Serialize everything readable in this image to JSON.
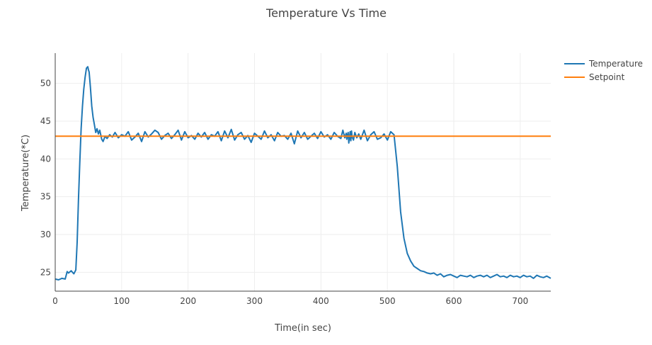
{
  "chart_data": {
    "type": "line",
    "title": "Temperature Vs Time",
    "xlabel": "Time(in sec)",
    "ylabel": "Temperature(*C)",
    "xlim": [
      0,
      746
    ],
    "ylim": [
      22.5,
      54
    ],
    "xticks": [
      0,
      100,
      200,
      300,
      400,
      500,
      600,
      700
    ],
    "yticks": [
      25,
      30,
      35,
      40,
      45,
      50
    ],
    "grid": true,
    "legend_position": "top-right",
    "series": [
      {
        "name": "Temperature",
        "color": "#1f77b4",
        "x": [
          0,
          5,
          10,
          15,
          18,
          20,
          24,
          28,
          31,
          33,
          35,
          37,
          39,
          41,
          43,
          45,
          47,
          49,
          50,
          51,
          52,
          53,
          55,
          57,
          59,
          61,
          63,
          65,
          67,
          70,
          72,
          75,
          78,
          82,
          86,
          90,
          95,
          100,
          105,
          110,
          115,
          120,
          125,
          130,
          135,
          140,
          145,
          150,
          155,
          160,
          165,
          170,
          175,
          180,
          185,
          190,
          195,
          200,
          205,
          210,
          215,
          220,
          225,
          230,
          235,
          240,
          245,
          250,
          255,
          260,
          265,
          270,
          275,
          280,
          285,
          290,
          295,
          300,
          305,
          310,
          315,
          320,
          325,
          330,
          335,
          340,
          345,
          350,
          355,
          360,
          365,
          370,
          375,
          380,
          385,
          390,
          395,
          400,
          405,
          410,
          415,
          420,
          425,
          430,
          433,
          436,
          438,
          439,
          440,
          441,
          442,
          443,
          444,
          445,
          446,
          447,
          449,
          451,
          454,
          457,
          460,
          465,
          470,
          475,
          480,
          485,
          490,
          495,
          500,
          505,
          510,
          515,
          520,
          525,
          530,
          535,
          540,
          545,
          550,
          555,
          560,
          565,
          570,
          575,
          580,
          585,
          590,
          595,
          600,
          605,
          610,
          615,
          620,
          625,
          630,
          635,
          640,
          645,
          650,
          655,
          660,
          665,
          670,
          675,
          680,
          685,
          690,
          695,
          700,
          705,
          710,
          715,
          720,
          725,
          730,
          735,
          740,
          746
        ],
        "y": [
          24.1,
          24.0,
          24.2,
          24.1,
          25.1,
          24.9,
          25.2,
          24.8,
          25.3,
          29.0,
          34.5,
          39.5,
          44.0,
          47.0,
          49.2,
          50.8,
          52.0,
          52.2,
          51.8,
          51.5,
          50.5,
          49.5,
          47.0,
          45.5,
          44.5,
          43.5,
          44.0,
          43.3,
          43.8,
          42.6,
          42.3,
          43.0,
          42.7,
          43.2,
          42.9,
          43.5,
          42.8,
          43.2,
          43.0,
          43.6,
          42.5,
          42.9,
          43.4,
          42.3,
          43.6,
          42.9,
          43.3,
          43.8,
          43.5,
          42.6,
          43.1,
          43.4,
          42.7,
          43.2,
          43.8,
          42.5,
          43.6,
          42.8,
          43.1,
          42.6,
          43.4,
          42.9,
          43.5,
          42.6,
          43.2,
          43.0,
          43.6,
          42.4,
          43.7,
          42.8,
          43.9,
          42.5,
          43.2,
          43.5,
          42.6,
          43.1,
          42.2,
          43.4,
          43.0,
          42.6,
          43.7,
          42.8,
          43.2,
          42.4,
          43.5,
          43.0,
          43.1,
          42.6,
          43.4,
          42.0,
          43.7,
          42.8,
          43.5,
          42.6,
          43.0,
          43.4,
          42.7,
          43.6,
          42.9,
          43.2,
          42.6,
          43.5,
          43.0,
          42.7,
          43.8,
          42.8,
          43.4,
          42.6,
          43.2,
          43.5,
          42.1,
          42.8,
          43.6,
          42.4,
          43.7,
          42.9,
          42.5,
          43.5,
          42.8,
          43.3,
          42.6,
          43.8,
          42.4,
          43.2,
          43.6,
          42.6,
          42.8,
          43.3,
          42.5,
          43.6,
          43.2,
          39.0,
          33.0,
          29.5,
          27.5,
          26.5,
          25.8,
          25.5,
          25.2,
          25.1,
          24.9,
          24.8,
          24.9,
          24.6,
          24.8,
          24.4,
          24.6,
          24.7,
          24.5,
          24.3,
          24.6,
          24.5,
          24.4,
          24.6,
          24.3,
          24.5,
          24.6,
          24.4,
          24.6,
          24.3,
          24.5,
          24.7,
          24.4,
          24.5,
          24.3,
          24.6,
          24.4,
          24.5,
          24.3,
          24.6,
          24.4,
          24.5,
          24.2,
          24.6,
          24.4,
          24.3,
          24.5,
          24.2
        ]
      },
      {
        "name": "Setpoint",
        "color": "#ff7f0e",
        "x": [
          0,
          746
        ],
        "y": [
          43,
          43
        ]
      }
    ]
  }
}
